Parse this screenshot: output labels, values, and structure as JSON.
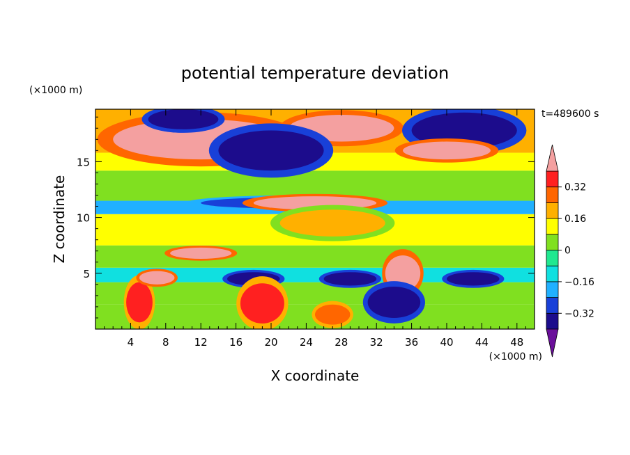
{
  "chart_data": {
    "type": "heatmap",
    "title": "potential temperature deviation",
    "xlabel": "X coordinate",
    "ylabel": "Z coordinate",
    "x_unit_label": "(×1000 m)",
    "y_unit_label": "(×1000 m)",
    "time_label": "t=489600 s",
    "xlim": [
      0,
      50
    ],
    "ylim": [
      0,
      19.7
    ],
    "x_ticks": [
      4,
      8,
      12,
      16,
      20,
      24,
      28,
      32,
      36,
      40,
      44,
      48
    ],
    "y_ticks": [
      5,
      10,
      15
    ],
    "colorbar": {
      "levels": [
        -0.4,
        -0.32,
        -0.24,
        -0.16,
        -0.08,
        0,
        0.08,
        0.16,
        0.24,
        0.32,
        0.4
      ],
      "tick_labels": [
        "0.32",
        "0.16",
        "0",
        "−0.16",
        "−0.32"
      ],
      "tick_values": [
        0.32,
        0.16,
        0,
        -0.16,
        -0.32
      ],
      "colors": [
        "#6a0f9a",
        "#1c0c8c",
        "#1840d8",
        "#20b0ff",
        "#10e0e0",
        "#20e890",
        "#80e020",
        "#ffff00",
        "#ffb000",
        "#ff6600",
        "#ff2020",
        "#f4a0a0"
      ],
      "extend": "both"
    },
    "bands": [
      {
        "z0": 0,
        "z1": 2.2,
        "value": 0.05
      },
      {
        "z0": 2.2,
        "z1": 4.2,
        "value": 0.02
      },
      {
        "z0": 4.2,
        "z1": 5.5,
        "value": -0.12
      },
      {
        "z0": 5.5,
        "z1": 7.5,
        "value": 0.0
      },
      {
        "z0": 7.5,
        "z1": 10.3,
        "value": 0.08
      },
      {
        "z0": 10.3,
        "z1": 11.5,
        "value": -0.22
      },
      {
        "z0": 11.5,
        "z1": 14.2,
        "value": 0.03
      },
      {
        "z0": 14.2,
        "z1": 15.8,
        "value": 0.12
      },
      {
        "z0": 15.8,
        "z1": 19.7,
        "value": 0.2
      }
    ],
    "features": [
      {
        "x": 12,
        "z": 17,
        "rx": 10,
        "rz": 1.8,
        "value": 0.4
      },
      {
        "x": 28,
        "z": 18,
        "rx": 6,
        "rz": 1.2,
        "value": 0.4
      },
      {
        "x": 20,
        "z": 16,
        "rx": 6,
        "rz": 1.8,
        "value": -0.4
      },
      {
        "x": 10,
        "z": 18.8,
        "rx": 4,
        "rz": 0.9,
        "value": -0.4
      },
      {
        "x": 42,
        "z": 17.8,
        "rx": 6,
        "rz": 1.6,
        "value": -0.4
      },
      {
        "x": 40,
        "z": 16,
        "rx": 5,
        "rz": 0.8,
        "value": 0.4
      },
      {
        "x": 22,
        "z": 11.3,
        "rx": 10,
        "rz": 0.5,
        "value": -0.3
      },
      {
        "x": 25,
        "z": 11.3,
        "rx": 7,
        "rz": 0.6,
        "value": 0.4
      },
      {
        "x": 27,
        "z": 9.5,
        "rx": 6,
        "rz": 1.2,
        "value": 0.16
      },
      {
        "x": 12,
        "z": 6.8,
        "rx": 3.5,
        "rz": 0.5,
        "value": 0.4
      },
      {
        "x": 35,
        "z": 5,
        "rx": 2,
        "rz": 1.6,
        "value": 0.4
      },
      {
        "x": 18,
        "z": 4.5,
        "rx": 3,
        "rz": 0.6,
        "value": -0.4
      },
      {
        "x": 29,
        "z": 4.5,
        "rx": 3,
        "rz": 0.6,
        "value": -0.4
      },
      {
        "x": 43,
        "z": 4.5,
        "rx": 3,
        "rz": 0.6,
        "value": -0.4
      },
      {
        "x": 19,
        "z": 2.3,
        "rx": 2.5,
        "rz": 1.8,
        "value": 0.32
      },
      {
        "x": 5,
        "z": 2.4,
        "rx": 1.5,
        "rz": 1.8,
        "value": 0.32
      },
      {
        "x": 34,
        "z": 2.4,
        "rx": 3,
        "rz": 1.4,
        "value": -0.4
      },
      {
        "x": 27,
        "z": 1.3,
        "rx": 2,
        "rz": 0.9,
        "value": 0.3
      },
      {
        "x": 7,
        "z": 4.6,
        "rx": 2,
        "rz": 0.6,
        "value": 0.4
      }
    ]
  }
}
